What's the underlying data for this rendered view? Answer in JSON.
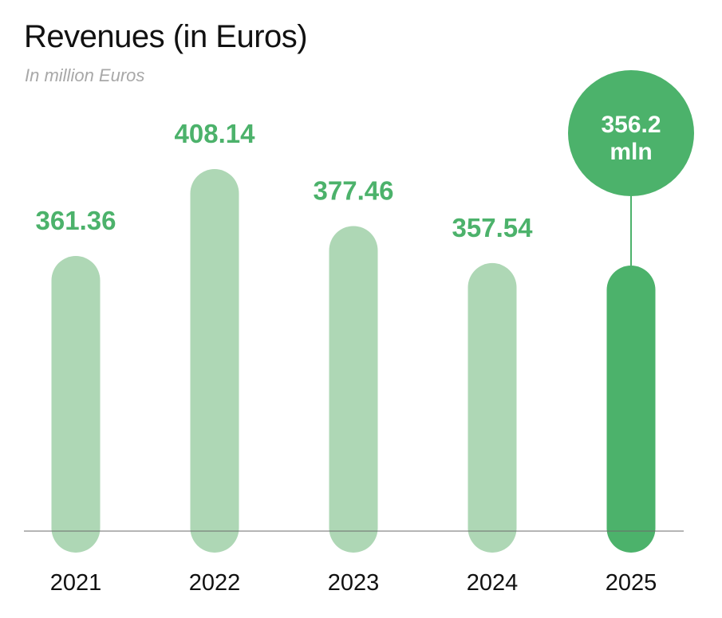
{
  "chart_data": {
    "type": "bar",
    "title": "Revenues (in Euros)",
    "subtitle": "In million Euros",
    "categories": [
      "2021",
      "2022",
      "2023",
      "2024",
      "2025"
    ],
    "value_labels": [
      "361.36",
      "408.14",
      "377.46",
      "357.54",
      ""
    ],
    "values": [
      361.36,
      408.14,
      377.46,
      357.54,
      356.2
    ],
    "highlight": {
      "category": "2025",
      "value_text": "356.2",
      "unit_text": "mln"
    },
    "xlabel": "",
    "ylabel": "",
    "ylim": [
      0,
      420
    ],
    "grid": false,
    "legend": "none",
    "colors": {
      "bar": "#aed7b5",
      "highlight_bar": "#4cb26b",
      "label": "#4cb26b",
      "axis": "#6b6b6b",
      "callout_text": "#ffffff"
    }
  }
}
